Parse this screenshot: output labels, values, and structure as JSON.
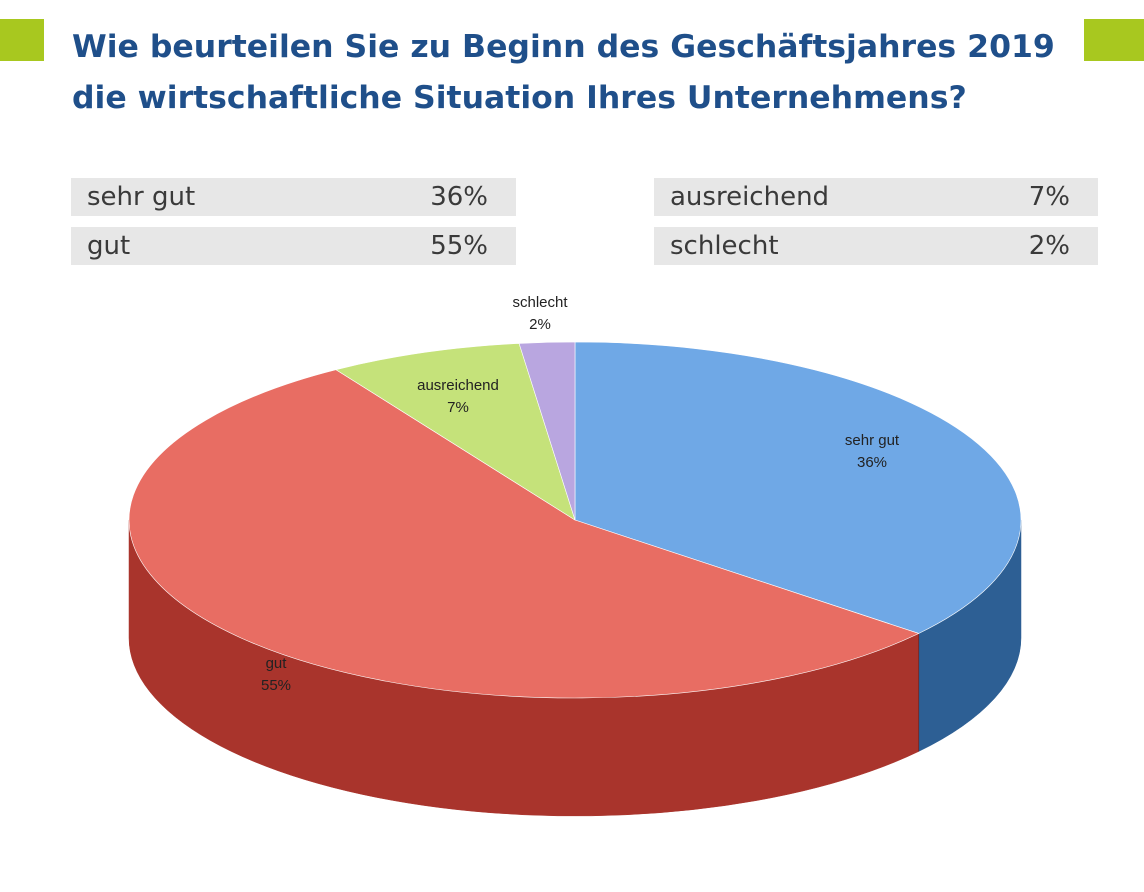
{
  "page": {
    "title_line1": "Wie beurteilen Sie zu Beginn des Geschäftsjahres 2019",
    "title_line2": "die wirtschaftliche Situation Ihres Unternehmens?"
  },
  "legend": [
    {
      "label": "sehr gut",
      "value": "36%"
    },
    {
      "label": "gut",
      "value": "55%"
    },
    {
      "label": "ausreichend",
      "value": "7%"
    },
    {
      "label": "schlecht",
      "value": "2%"
    }
  ],
  "colors": {
    "accent": "#a8c81f",
    "title": "#1f4f8a",
    "legend_bg": "#e7e7e7"
  },
  "chart_data": {
    "type": "pie",
    "style": "3d",
    "slices": [
      {
        "label": "sehr gut",
        "value": 36,
        "value_label": "36%",
        "color": "#6fa8e6",
        "side_color": "#2d5f94"
      },
      {
        "label": "gut",
        "value": 55,
        "value_label": "55%",
        "color": "#e86d63",
        "side_color": "#a9342c"
      },
      {
        "label": "ausreichend",
        "value": 7,
        "value_label": "7%",
        "color": "#c5e27a",
        "side_color": "#8aa83e"
      },
      {
        "label": "schlecht",
        "value": 2,
        "value_label": "2%",
        "color": "#b9a6e0",
        "side_color": "#7d6ca8"
      }
    ],
    "start": "12 o'clock",
    "direction": "clockwise",
    "legend_position": "top"
  }
}
